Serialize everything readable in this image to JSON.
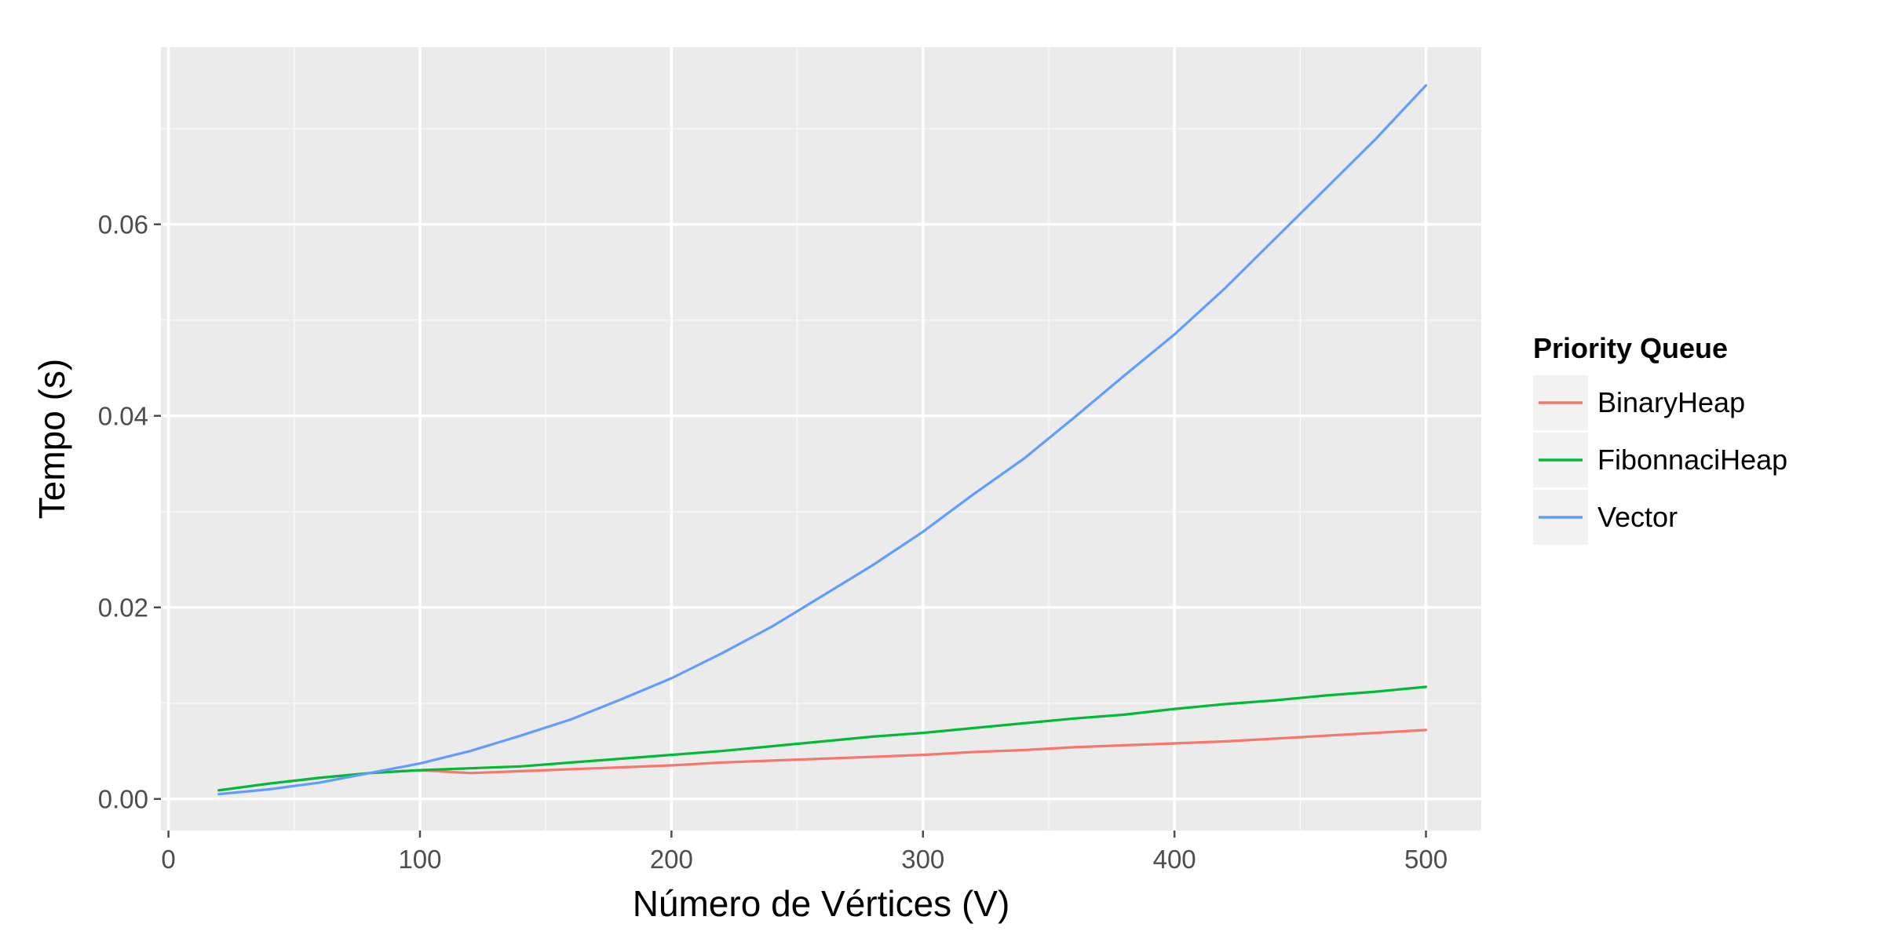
{
  "chart_data": {
    "type": "line",
    "title": "",
    "xlabel": "Número de Vértices (V)",
    "ylabel": "Tempo (s)",
    "xlim": [
      -3,
      522
    ],
    "ylim": [
      -0.0033,
      0.0785
    ],
    "x_ticks": [
      0,
      100,
      200,
      300,
      400,
      500
    ],
    "x_tick_labels": [
      "0",
      "100",
      "200",
      "300",
      "400",
      "500"
    ],
    "y_ticks": [
      0,
      0.02,
      0.04,
      0.06
    ],
    "y_tick_labels": [
      "0.00",
      "0.02",
      "0.04",
      "0.06"
    ],
    "grid": true,
    "legend": {
      "title": "Priority Queue",
      "position": "right"
    },
    "x": [
      20,
      40,
      60,
      80,
      100,
      120,
      140,
      160,
      180,
      200,
      220,
      240,
      260,
      280,
      300,
      320,
      340,
      360,
      380,
      400,
      420,
      440,
      460,
      480,
      500
    ],
    "series": [
      {
        "name": "BinaryHeap",
        "color": "#F8766D",
        "values": [
          0.0009,
          0.0016,
          0.0022,
          0.0027,
          0.003,
          0.0027,
          0.0029,
          0.0031,
          0.0033,
          0.0035,
          0.0038,
          0.004,
          0.0042,
          0.0044,
          0.0046,
          0.0049,
          0.0051,
          0.0054,
          0.0056,
          0.0058,
          0.006,
          0.0063,
          0.0066,
          0.0069,
          0.0072
        ]
      },
      {
        "name": "FibonnaciHeap",
        "color": "#00BA38",
        "values": [
          0.0009,
          0.0016,
          0.0022,
          0.0027,
          0.003,
          0.0032,
          0.0034,
          0.0038,
          0.0042,
          0.0046,
          0.005,
          0.0055,
          0.006,
          0.0065,
          0.0069,
          0.0074,
          0.0079,
          0.0084,
          0.0088,
          0.0094,
          0.0099,
          0.0103,
          0.0108,
          0.0112,
          0.0117
        ]
      },
      {
        "name": "Vector",
        "color": "#619CFF",
        "values": [
          0.0005,
          0.001,
          0.0017,
          0.0027,
          0.0037,
          0.005,
          0.0066,
          0.0083,
          0.0104,
          0.0126,
          0.0152,
          0.018,
          0.0212,
          0.0244,
          0.0279,
          0.0318,
          0.0355,
          0.0398,
          0.0442,
          0.0485,
          0.0533,
          0.0585,
          0.0637,
          0.0689,
          0.0745
        ]
      }
    ]
  }
}
